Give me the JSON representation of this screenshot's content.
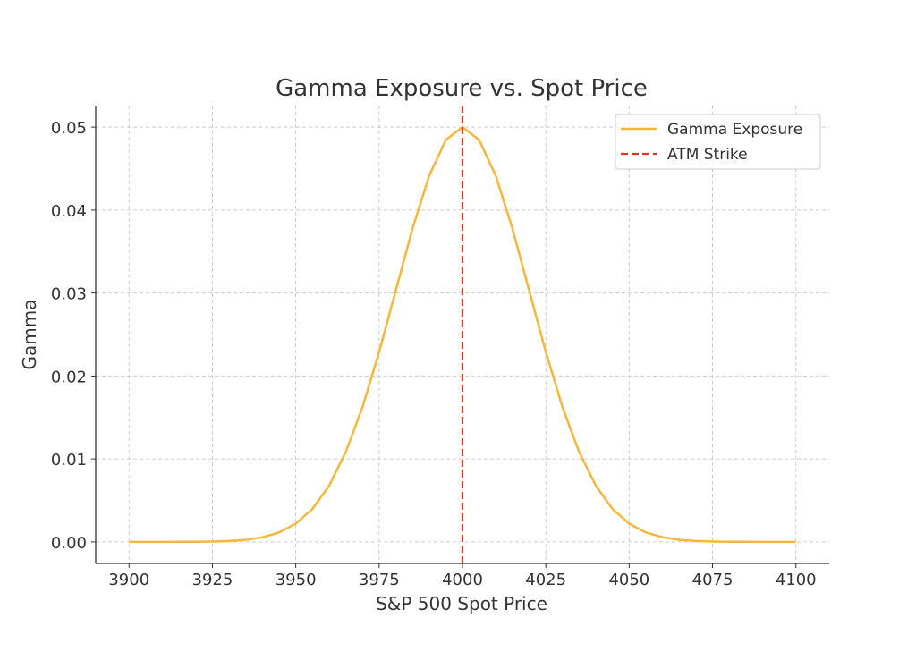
{
  "chart_data": {
    "type": "line",
    "title": "Gamma Exposure vs. Spot Price",
    "xlabel": "S&P 500 Spot Price",
    "ylabel": "Gamma",
    "xlim": [
      3890,
      4110
    ],
    "ylim": [
      -0.0026,
      0.0526
    ],
    "xticks": [
      3900,
      3925,
      3950,
      3975,
      4000,
      4025,
      4050,
      4075,
      4100
    ],
    "yticks": [
      "0.00",
      "0.01",
      "0.02",
      "0.03",
      "0.04",
      "0.05"
    ],
    "grid": true,
    "legend_position": "top-right",
    "series": [
      {
        "name": "Gamma Exposure",
        "color": "#f5b73b",
        "style": "solid",
        "x": [
          3900,
          3905,
          3910,
          3915,
          3920,
          3925,
          3930,
          3935,
          3940,
          3945,
          3950,
          3955,
          3960,
          3965,
          3970,
          3975,
          3980,
          3985,
          3990,
          3995,
          4000,
          4005,
          4010,
          4015,
          4020,
          4025,
          4030,
          4035,
          4040,
          4045,
          4050,
          4055,
          4060,
          4065,
          4070,
          4075,
          4080,
          4085,
          4090,
          4095,
          4100
        ],
        "y": [
          0.0,
          0.0,
          0.0,
          1e-05,
          2e-05,
          4e-05,
          0.00011,
          0.00025,
          0.00056,
          0.00114,
          0.0022,
          0.00398,
          0.00677,
          0.01082,
          0.01623,
          0.02289,
          0.03033,
          0.03774,
          0.04412,
          0.04846,
          0.05,
          0.04846,
          0.04412,
          0.03774,
          0.03033,
          0.02289,
          0.01623,
          0.01082,
          0.00677,
          0.00398,
          0.0022,
          0.00114,
          0.00056,
          0.00025,
          0.00011,
          4e-05,
          2e-05,
          1e-05,
          0.0,
          0.0,
          0.0
        ]
      },
      {
        "name": "ATM Strike",
        "color": "#e0352b",
        "style": "dashed",
        "x_value": 4000
      }
    ]
  }
}
